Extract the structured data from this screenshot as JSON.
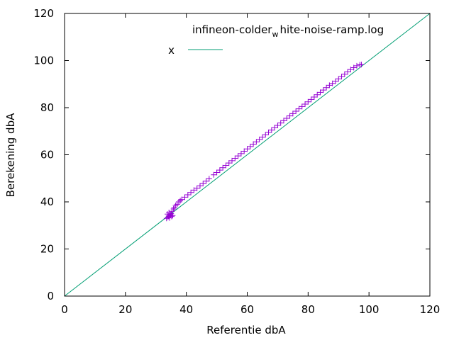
{
  "chart_data": {
    "type": "scatter",
    "title": "infineon-colder_white-noise-ramp.log",
    "title_parts": {
      "main": "infineon-colder",
      "sub": "w",
      "rest": "hite-noise-ramp.log"
    },
    "xlabel": "Referentie dbA",
    "ylabel": "Berekening dbA",
    "xlim": [
      0,
      120
    ],
    "ylim": [
      0,
      120
    ],
    "xticks": [
      "0",
      "20",
      "40",
      "60",
      "80",
      "100",
      "120"
    ],
    "yticks": [
      "0",
      "20",
      "40",
      "60",
      "80",
      "100",
      "120"
    ],
    "grid": false,
    "legend_position": "top",
    "series": [
      {
        "name": "x",
        "kind": "line",
        "color": "#009e73",
        "x": [
          0,
          120
        ],
        "y": [
          0,
          120
        ]
      },
      {
        "kind": "points",
        "marker": "plus",
        "color": "#9400d3",
        "x": [
          33.5,
          34.0,
          34.2,
          34.5,
          34.8,
          35.0,
          35.2,
          35.5,
          33.8,
          34.3,
          35.3,
          35.8,
          36.0,
          36.5,
          37.0,
          37.5,
          38.0,
          38.5,
          39.5,
          40.5,
          41.5,
          42.5,
          43.5,
          44.5,
          45.5,
          46.5,
          47.5,
          49.0,
          50.0,
          51.0,
          52.0,
          53.0,
          54.0,
          55.0,
          56.0,
          57.0,
          58.0,
          59.0,
          60.0,
          61.0,
          62.0,
          63.0,
          64.0,
          65.0,
          66.0,
          67.0,
          68.0,
          69.0,
          70.0,
          71.0,
          72.0,
          73.0,
          74.0,
          75.0,
          76.0,
          77.0,
          78.0,
          79.0,
          80.0,
          81.0,
          82.0,
          83.0,
          84.0,
          85.0,
          86.0,
          87.0,
          88.0,
          89.0,
          90.0,
          91.0,
          92.0,
          93.0,
          94.0,
          95.0,
          96.0,
          97.0,
          97.5
        ],
        "y": [
          33.0,
          33.5,
          34.0,
          33.2,
          34.5,
          35.0,
          33.8,
          34.2,
          34.8,
          35.5,
          36.0,
          37.0,
          37.5,
          38.5,
          39.0,
          40.0,
          40.5,
          41.0,
          42.0,
          43.0,
          44.0,
          45.0,
          45.8,
          46.8,
          47.8,
          48.8,
          49.8,
          51.5,
          52.5,
          53.5,
          54.5,
          55.5,
          56.5,
          57.5,
          58.5,
          59.5,
          60.5,
          61.5,
          62.5,
          63.5,
          64.5,
          65.5,
          66.5,
          67.5,
          68.5,
          69.5,
          70.5,
          71.5,
          72.5,
          73.5,
          74.5,
          75.5,
          76.5,
          77.5,
          78.5,
          79.5,
          80.5,
          81.5,
          82.5,
          83.5,
          84.5,
          85.5,
          86.5,
          87.5,
          88.5,
          89.5,
          90.3,
          91.2,
          92.2,
          93.2,
          94.2,
          95.2,
          96.2,
          97.0,
          97.8,
          98.2,
          98.3
        ]
      }
    ]
  }
}
